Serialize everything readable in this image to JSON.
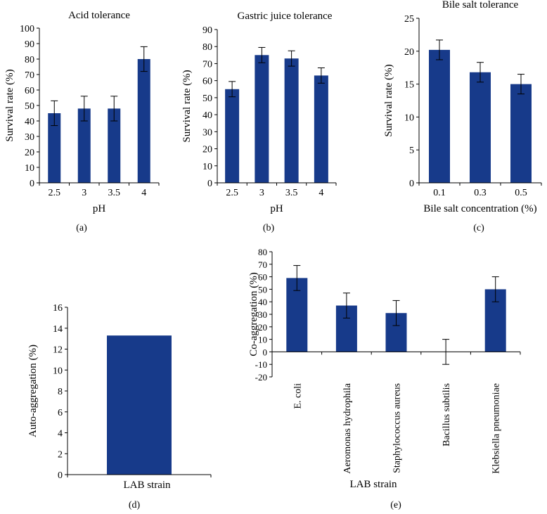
{
  "bar_color": "#173a8a",
  "chart_data": [
    {
      "panel": "(a)",
      "type": "bar",
      "title": "Acid tolerance",
      "xlabel": "pH",
      "ylabel": "Survival rate (%)",
      "categories": [
        "2.5",
        "3",
        "3.5",
        "4"
      ],
      "values": [
        45,
        48,
        48,
        80
      ],
      "errors": [
        8,
        8,
        8,
        8
      ],
      "ylim": [
        0,
        100
      ],
      "yticks": [
        "0",
        "10",
        "20",
        "30",
        "40",
        "50",
        "60",
        "70",
        "80",
        "90",
        "100"
      ]
    },
    {
      "panel": "(b)",
      "type": "bar",
      "title": "Gastric juice tolerance",
      "xlabel": "pH",
      "ylabel": "Survival rate (%)",
      "categories": [
        "2.5",
        "3",
        "3.5",
        "4"
      ],
      "values": [
        55,
        75,
        73,
        63
      ],
      "errors": [
        4.5,
        4.5,
        4.5,
        4.5
      ],
      "ylim": [
        0,
        90
      ],
      "yticks": [
        "0",
        "10",
        "20",
        "30",
        "40",
        "50",
        "60",
        "70",
        "80",
        "90"
      ]
    },
    {
      "panel": "(c)",
      "type": "bar",
      "title": "Bile salt tolerance",
      "xlabel": "Bile salt concentration (%)",
      "ylabel": "Survival rate (%)",
      "categories": [
        "0.1",
        "0.3",
        "0.5"
      ],
      "values": [
        20.2,
        16.8,
        15
      ],
      "errors": [
        1.5,
        1.5,
        1.5
      ],
      "ylim": [
        0,
        25
      ],
      "yticks": [
        "0",
        "5",
        "10",
        "15",
        "20",
        "25"
      ]
    },
    {
      "panel": "(d)",
      "type": "bar",
      "title": "",
      "xlabel": "LAB strain",
      "ylabel": "Auto-aggregation (%)",
      "categories": [
        ""
      ],
      "values": [
        13.3
      ],
      "errors": [
        0
      ],
      "ylim": [
        0,
        16
      ],
      "yticks": [
        "0",
        "2",
        "4",
        "6",
        "8",
        "10",
        "12",
        "14",
        "16"
      ]
    },
    {
      "panel": "(e)",
      "type": "bar",
      "title": "",
      "xlabel": "LAB strain",
      "ylabel": "Co-aggregation (%)",
      "categories": [
        "E. coli",
        "Aeromonas hydrophila",
        "Staphylococcus aureus",
        "Bacillus subtilis",
        "Klebsiella pneumoniae"
      ],
      "values": [
        59,
        37,
        31,
        0,
        50
      ],
      "errors": [
        10,
        10,
        10,
        10,
        10
      ],
      "ylim": [
        -20,
        80
      ],
      "yticks": [
        "-20",
        "-10",
        "0",
        "10",
        "20",
        "30",
        "40",
        "50",
        "60",
        "70",
        "80"
      ]
    }
  ]
}
